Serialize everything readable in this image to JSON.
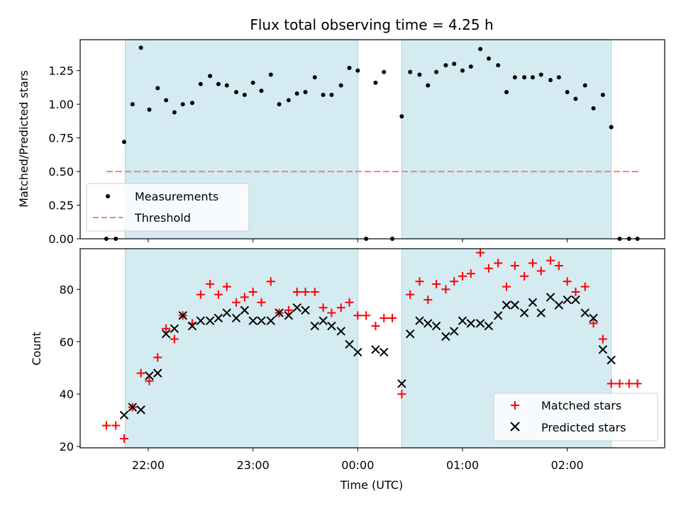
{
  "chart_data": {
    "title": "Flux total observing time = 4.25 h",
    "xlabel": "Time (UTC)",
    "x_ticks": [
      "22:00",
      "23:00",
      "00:00",
      "01:00",
      "02:00"
    ],
    "x_tick_hours": [
      22,
      23,
      24,
      25,
      26
    ],
    "xlim": [
      21.35,
      26.93
    ],
    "shaded_intervals": [
      [
        21.78,
        24.0
      ],
      [
        24.42,
        26.42
      ]
    ],
    "shade_color": "#d4ebf2",
    "panels": [
      {
        "type": "scatter",
        "ylabel": "Matched/Predicted stars",
        "ylim": [
          0,
          1.48
        ],
        "yticks": [
          "0.00",
          "0.25",
          "0.50",
          "0.75",
          "1.00",
          "1.25"
        ],
        "ytick_values": [
          0,
          0.25,
          0.5,
          0.75,
          1.0,
          1.25
        ],
        "legend": [
          "Measurements",
          "Threshold"
        ],
        "threshold": {
          "name": "Threshold",
          "y": 0.5,
          "x_range": [
            21.6,
            26.68
          ],
          "color": "#f08080"
        },
        "series": [
          {
            "name": "Measurements",
            "color": "#000000",
            "x": [
              21.6,
              21.69,
              21.77,
              21.85,
              21.93,
              22.01,
              22.09,
              22.17,
              22.25,
              22.33,
              22.42,
              22.5,
              22.59,
              22.67,
              22.75,
              22.84,
              22.92,
              23.0,
              23.08,
              23.17,
              23.25,
              23.34,
              23.42,
              23.5,
              23.59,
              23.67,
              23.75,
              23.84,
              23.92,
              24.0,
              24.08,
              24.17,
              24.25,
              24.33,
              24.42,
              24.5,
              24.59,
              24.67,
              24.75,
              24.84,
              24.92,
              25.0,
              25.08,
              25.17,
              25.25,
              25.34,
              25.42,
              25.5,
              25.59,
              25.67,
              25.75,
              25.84,
              25.92,
              26.0,
              26.08,
              26.17,
              26.25,
              26.34,
              26.42,
              26.5,
              26.59,
              26.67
            ],
            "y": [
              0,
              0,
              0.72,
              1.0,
              1.42,
              0.96,
              1.12,
              1.03,
              0.94,
              1.0,
              1.01,
              1.15,
              1.21,
              1.15,
              1.14,
              1.09,
              1.07,
              1.16,
              1.1,
              1.22,
              1.0,
              1.03,
              1.08,
              1.09,
              1.2,
              1.07,
              1.07,
              1.14,
              1.27,
              1.25,
              0,
              1.16,
              1.24,
              0,
              0.91,
              1.24,
              1.22,
              1.14,
              1.24,
              1.29,
              1.3,
              1.25,
              1.28,
              1.41,
              1.34,
              1.29,
              1.09,
              1.2,
              1.2,
              1.2,
              1.22,
              1.18,
              1.2,
              1.09,
              1.04,
              1.14,
              0.97,
              1.07,
              0.83,
              0,
              0,
              0
            ]
          }
        ]
      },
      {
        "type": "scatter",
        "ylabel": "Count",
        "ylim": [
          19.5,
          95.5
        ],
        "yticks": [
          "20",
          "40",
          "60",
          "80"
        ],
        "ytick_values": [
          20,
          40,
          60,
          80
        ],
        "legend": [
          "Matched stars",
          "Predicted stars"
        ],
        "series": [
          {
            "name": "Matched stars",
            "marker": "+",
            "color": "#ff0000",
            "x": [
              21.6,
              21.69,
              21.77,
              21.85,
              21.93,
              22.01,
              22.09,
              22.17,
              22.25,
              22.33,
              22.42,
              22.5,
              22.59,
              22.67,
              22.75,
              22.84,
              22.92,
              23.0,
              23.08,
              23.17,
              23.25,
              23.34,
              23.42,
              23.5,
              23.59,
              23.67,
              23.75,
              23.84,
              23.92,
              24.0,
              24.08,
              24.17,
              24.25,
              24.33,
              24.42,
              24.5,
              24.59,
              24.67,
              24.75,
              24.84,
              24.92,
              25.0,
              25.08,
              25.17,
              25.25,
              25.34,
              25.42,
              25.5,
              25.59,
              25.67,
              25.75,
              25.84,
              25.92,
              26.0,
              26.08,
              26.17,
              26.25,
              26.34,
              26.42,
              26.5,
              26.59,
              26.67
            ],
            "y": [
              28,
              28,
              23,
              35,
              48,
              45,
              54,
              65,
              61,
              70,
              67,
              78,
              82,
              78,
              81,
              75,
              77,
              79,
              75,
              83,
              71,
              72,
              79,
              79,
              79,
              73,
              71,
              73,
              75,
              70,
              70,
              66,
              69,
              69,
              40,
              78,
              83,
              76,
              82,
              80,
              83,
              85,
              86,
              94,
              88,
              90,
              81,
              89,
              85,
              90,
              87,
              91,
              89,
              83,
              79,
              81,
              67,
              61,
              44,
              44,
              44,
              44
            ]
          },
          {
            "name": "Predicted stars",
            "marker": "x",
            "color": "#000000",
            "x": [
              21.77,
              21.85,
              21.93,
              22.01,
              22.09,
              22.17,
              22.25,
              22.33,
              22.42,
              22.5,
              22.59,
              22.67,
              22.75,
              22.84,
              22.92,
              23.0,
              23.08,
              23.17,
              23.25,
              23.34,
              23.42,
              23.5,
              23.59,
              23.67,
              23.75,
              23.84,
              23.92,
              24.0,
              24.17,
              24.25,
              24.42,
              24.5,
              24.59,
              24.67,
              24.75,
              24.84,
              24.92,
              25.0,
              25.08,
              25.17,
              25.25,
              25.34,
              25.42,
              25.5,
              25.59,
              25.67,
              25.75,
              25.84,
              25.92,
              26.0,
              26.08,
              26.17,
              26.25,
              26.34,
              26.42
            ],
            "y": [
              32,
              35,
              34,
              47,
              48,
              63,
              65,
              70,
              66,
              68,
              68,
              69,
              71,
              69,
              72,
              68,
              68,
              68,
              71,
              70,
              73,
              72,
              66,
              68,
              66,
              64,
              59,
              56,
              57,
              56,
              44,
              63,
              68,
              67,
              66,
              62,
              64,
              68,
              67,
              67,
              66,
              70,
              74,
              74,
              71,
              75,
              71,
              77,
              74,
              76,
              76,
              71,
              69,
              57,
              53
            ]
          }
        ]
      }
    ]
  }
}
